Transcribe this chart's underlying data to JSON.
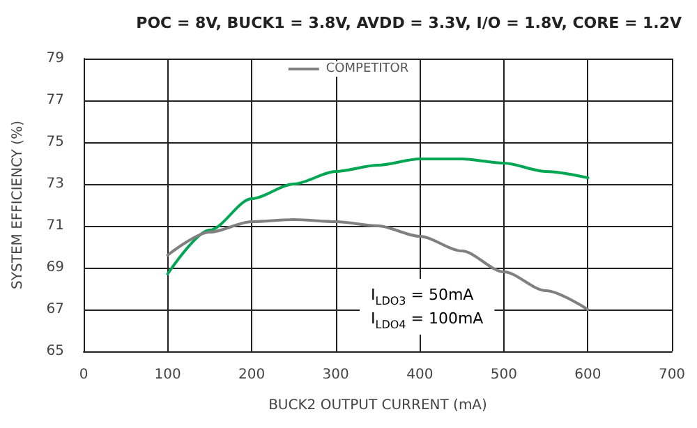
{
  "chart_data": {
    "type": "line",
    "title": "POC = 8V, BUCK1 = 3.8V, AVDD = 3.3V, I/O = 1.8V, CORE = 1.2V",
    "xlabel": "BUCK2 OUTPUT CURRENT (mA)",
    "ylabel": "SYSTEM EFFICIENCY (%)",
    "x": [
      100,
      150,
      200,
      250,
      300,
      350,
      400,
      450,
      500,
      550,
      600
    ],
    "series": [
      {
        "color": "#00a651",
        "values": [
          68.7,
          70.8,
          72.3,
          73.0,
          73.6,
          73.9,
          74.2,
          74.2,
          74.0,
          73.6,
          73.3
        ]
      },
      {
        "name": "COMPETITOR",
        "color": "#808080",
        "values": [
          69.6,
          70.7,
          71.2,
          71.3,
          71.2,
          71.0,
          70.5,
          69.8,
          68.8,
          67.9,
          67.0
        ]
      }
    ],
    "xlim": [
      0,
      700
    ],
    "xticks": [
      0,
      100,
      200,
      300,
      400,
      500,
      600,
      700
    ],
    "ylim": [
      65,
      79
    ],
    "yticks": [
      65,
      67,
      69,
      71,
      73,
      75,
      77,
      79
    ],
    "annotations": [
      "I$_{LDO3}$ = 50mA",
      "I$_{LDO4}$ = 100mA"
    ],
    "grid": true,
    "legend": "top",
    "marker": "none",
    "line_style": "solid"
  }
}
